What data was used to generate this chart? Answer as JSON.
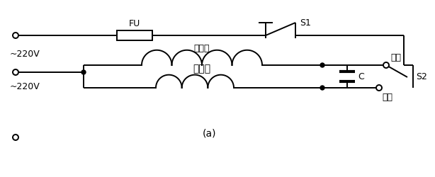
{
  "bg_color": "#ffffff",
  "line_color": "#000000",
  "label_220V": "~220V",
  "label_FU": "FU",
  "label_S1": "S1",
  "label_main_winding": "主绕组",
  "label_aux_winding": "副绕组",
  "label_C": "C",
  "label_forward": "正转",
  "label_reverse": "反转",
  "label_S2": "S2",
  "label_bottom": "(a)",
  "figw": 6.14,
  "figh": 2.51,
  "dpi": 100
}
